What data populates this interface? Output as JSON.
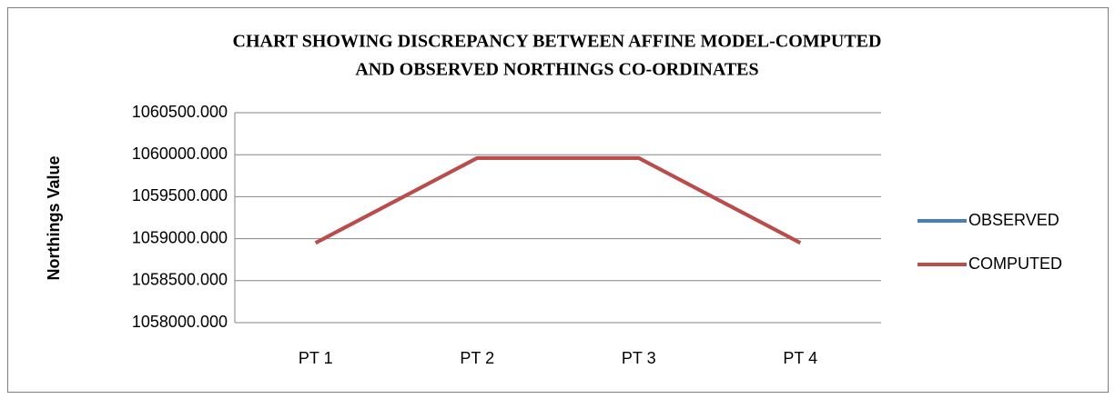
{
  "chart_data": {
    "type": "line",
    "title": [
      "CHART SHOWING DISCREPANCY BETWEEN AFFINE MODEL-COMPUTED",
      "AND OBSERVED NORTHINGS CO-ORDINATES"
    ],
    "y_label": "Northings Value",
    "categories": [
      "PT 1",
      "PT 2",
      "PT 3",
      "PT 4"
    ],
    "series": [
      {
        "name": "OBSERVED",
        "color": "#4a7ebb",
        "values": [
          1058950,
          1059960,
          1059960,
          1058950
        ]
      },
      {
        "name": "COMPUTED",
        "color": "#be4b48",
        "values": [
          1058950,
          1059960,
          1059960,
          1058950
        ]
      }
    ],
    "ylim": [
      1058000,
      1060500
    ],
    "yticks": [
      {
        "value": 1058000,
        "label": "1058000.000"
      },
      {
        "value": 1058500,
        "label": "1058500.000"
      },
      {
        "value": 1059000,
        "label": "1059000.000"
      },
      {
        "value": 1059500,
        "label": "1059500.000"
      },
      {
        "value": 1060000,
        "label": "1060000.000"
      },
      {
        "value": 1060500,
        "label": "1060500.000"
      }
    ],
    "grid": true,
    "legend": "right"
  }
}
